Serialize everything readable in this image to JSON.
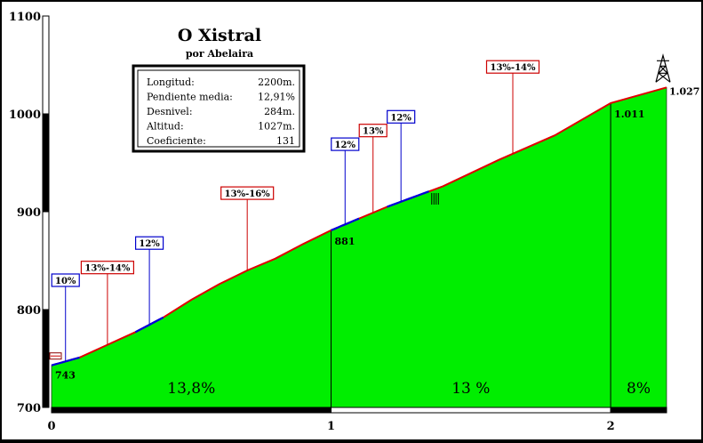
{
  "chart_data": {
    "type": "area",
    "title": "O Xistral",
    "subtitle": "por Abelaira",
    "ylim": [
      700,
      1100
    ],
    "xlim": [
      0,
      2.2
    ],
    "y_ticks": [
      "700",
      "800",
      "900",
      "1000",
      "1100"
    ],
    "x_ticks": [
      "0",
      "1",
      "2"
    ],
    "x_tick_values": [
      0,
      1,
      2
    ],
    "profile": [
      {
        "x": 0.0,
        "y": 743
      },
      {
        "x": 0.1,
        "y": 751
      },
      {
        "x": 0.2,
        "y": 764
      },
      {
        "x": 0.3,
        "y": 777
      },
      {
        "x": 0.4,
        "y": 792
      },
      {
        "x": 0.5,
        "y": 810
      },
      {
        "x": 0.6,
        "y": 826
      },
      {
        "x": 0.7,
        "y": 840
      },
      {
        "x": 0.8,
        "y": 852
      },
      {
        "x": 0.9,
        "y": 867
      },
      {
        "x": 1.0,
        "y": 881
      },
      {
        "x": 1.2,
        "y": 905
      },
      {
        "x": 1.4,
        "y": 926
      },
      {
        "x": 1.6,
        "y": 953
      },
      {
        "x": 1.8,
        "y": 978
      },
      {
        "x": 2.0,
        "y": 1011
      },
      {
        "x": 2.2,
        "y": 1027
      }
    ],
    "segments": [
      {
        "x0": 0,
        "x1": 1,
        "label": "13,8%"
      },
      {
        "x0": 1,
        "x1": 2,
        "label": "13 %"
      },
      {
        "x0": 2,
        "x1": 2.2,
        "label": "8%"
      }
    ],
    "point_labels": [
      {
        "x": 0,
        "y": 743,
        "text": "743"
      },
      {
        "x": 1,
        "y": 881,
        "text": "881"
      },
      {
        "x": 2,
        "y": 1011,
        "text": "1.011"
      },
      {
        "x": 2.2,
        "y": 1027,
        "text": "1.027"
      }
    ],
    "callouts": [
      {
        "x": 0.05,
        "text": "10%",
        "color": "#0000cc",
        "label_y": 830
      },
      {
        "x": 0.2,
        "text": "13%-14%",
        "color": "#cc0000",
        "label_y": 843
      },
      {
        "x": 0.35,
        "text": "12%",
        "color": "#0000cc",
        "label_y": 868
      },
      {
        "x": 0.7,
        "text": "13%-16%",
        "color": "#cc0000",
        "label_y": 919
      },
      {
        "x": 1.05,
        "text": "12%",
        "color": "#0000cc",
        "label_y": 969
      },
      {
        "x": 1.15,
        "text": "13%",
        "color": "#cc0000",
        "label_y": 983
      },
      {
        "x": 1.25,
        "text": "12%",
        "color": "#0000cc",
        "label_y": 997
      },
      {
        "x": 1.65,
        "text": "13%-14%",
        "color": "#cc0000",
        "label_y": 1048
      }
    ],
    "blue_sections": [
      [
        0.0,
        0.1
      ],
      [
        0.3,
        0.4
      ],
      [
        1.0,
        1.1
      ],
      [
        1.2,
        1.35
      ]
    ],
    "stats": {
      "rows": [
        {
          "label": "Longitud:",
          "value": "2200m."
        },
        {
          "label": "Pendiente media:",
          "value": "12,91%"
        },
        {
          "label": "Desnivel:",
          "value": "284m."
        },
        {
          "label": "Altitud:",
          "value": "1027m."
        },
        {
          "label": "Coeficiente:",
          "value": "131"
        }
      ]
    },
    "colors": {
      "fill": "#00ee00",
      "profile_line": "#e00000",
      "steep_line": "#0000dd",
      "axis": "#000000"
    }
  }
}
